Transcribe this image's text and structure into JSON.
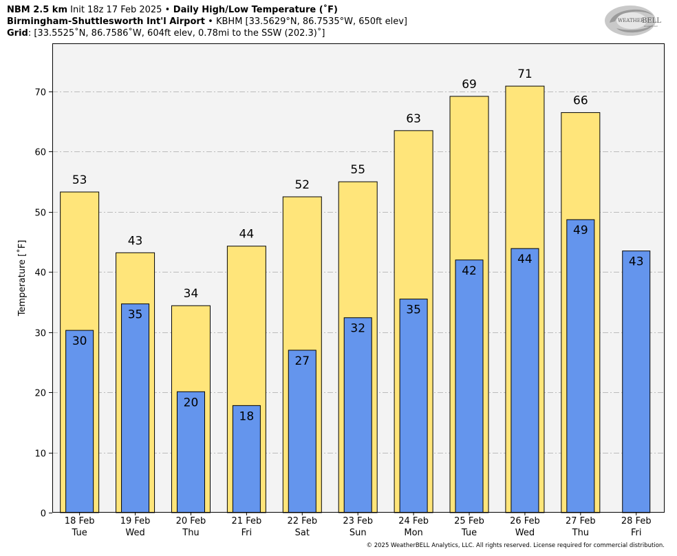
{
  "header": {
    "line1": {
      "model": "NBM 2.5 km",
      "init": " Init 18z 17 Feb 2025 ",
      "sep": "•",
      "product": " Daily High/Low Temperature (˚F)"
    },
    "line2": {
      "station": "Birmingham-Shuttlesworth Int'l Airport",
      "sep": " • ",
      "info": "KBHM [33.5629°N, 86.7535°W, 650ft elev]"
    },
    "line3": {
      "label": "Grid",
      "info": ": [33.5525˚N, 86.7586˚W, 604ft elev, 0.78mi to the SSW (202.3)˚]"
    }
  },
  "logo": {
    "text_main": "WEATHER",
    "text_bell": "BELL",
    "text_sub": "Analytics LLC"
  },
  "copyright": "© 2025 WeatherBELL Analytics, LLC. All rights reserved. License required for commercial distribution.",
  "colors": {
    "high": "#ffe57a",
    "low": "#6495ed",
    "plot_bg": "#f3f3f3",
    "grid": "#bbbbbb"
  },
  "chart_data": {
    "type": "bar",
    "title": "Daily High/Low Temperature (˚F)",
    "xlabel": "",
    "ylabel": "Temperature [˚F]",
    "ylim": [
      0,
      78
    ],
    "yticks": [
      0,
      10,
      20,
      30,
      40,
      50,
      60,
      70
    ],
    "grid": true,
    "categories": [
      {
        "date": "18 Feb",
        "dow": "Tue"
      },
      {
        "date": "19 Feb",
        "dow": "Wed"
      },
      {
        "date": "20 Feb",
        "dow": "Thu"
      },
      {
        "date": "21 Feb",
        "dow": "Fri"
      },
      {
        "date": "22 Feb",
        "dow": "Sat"
      },
      {
        "date": "23 Feb",
        "dow": "Sun"
      },
      {
        "date": "24 Feb",
        "dow": "Mon"
      },
      {
        "date": "25 Feb",
        "dow": "Tue"
      },
      {
        "date": "26 Feb",
        "dow": "Wed"
      },
      {
        "date": "27 Feb",
        "dow": "Thu"
      },
      {
        "date": "28 Feb",
        "dow": "Fri"
      }
    ],
    "series": [
      {
        "name": "High",
        "values": [
          53.3,
          43.2,
          34.4,
          44.3,
          52.5,
          55.0,
          63.5,
          69.2,
          70.9,
          66.5,
          null
        ],
        "labels": [
          "53",
          "43",
          "34",
          "44",
          "52",
          "55",
          "63",
          "69",
          "71",
          "66",
          null
        ]
      },
      {
        "name": "Low",
        "values": [
          30.3,
          34.7,
          20.1,
          17.8,
          27.0,
          32.4,
          35.5,
          42.0,
          43.9,
          48.7,
          43.5
        ],
        "labels": [
          "30",
          "35",
          "20",
          "18",
          "27",
          "32",
          "35",
          "42",
          "44",
          "49",
          "43"
        ]
      }
    ]
  }
}
